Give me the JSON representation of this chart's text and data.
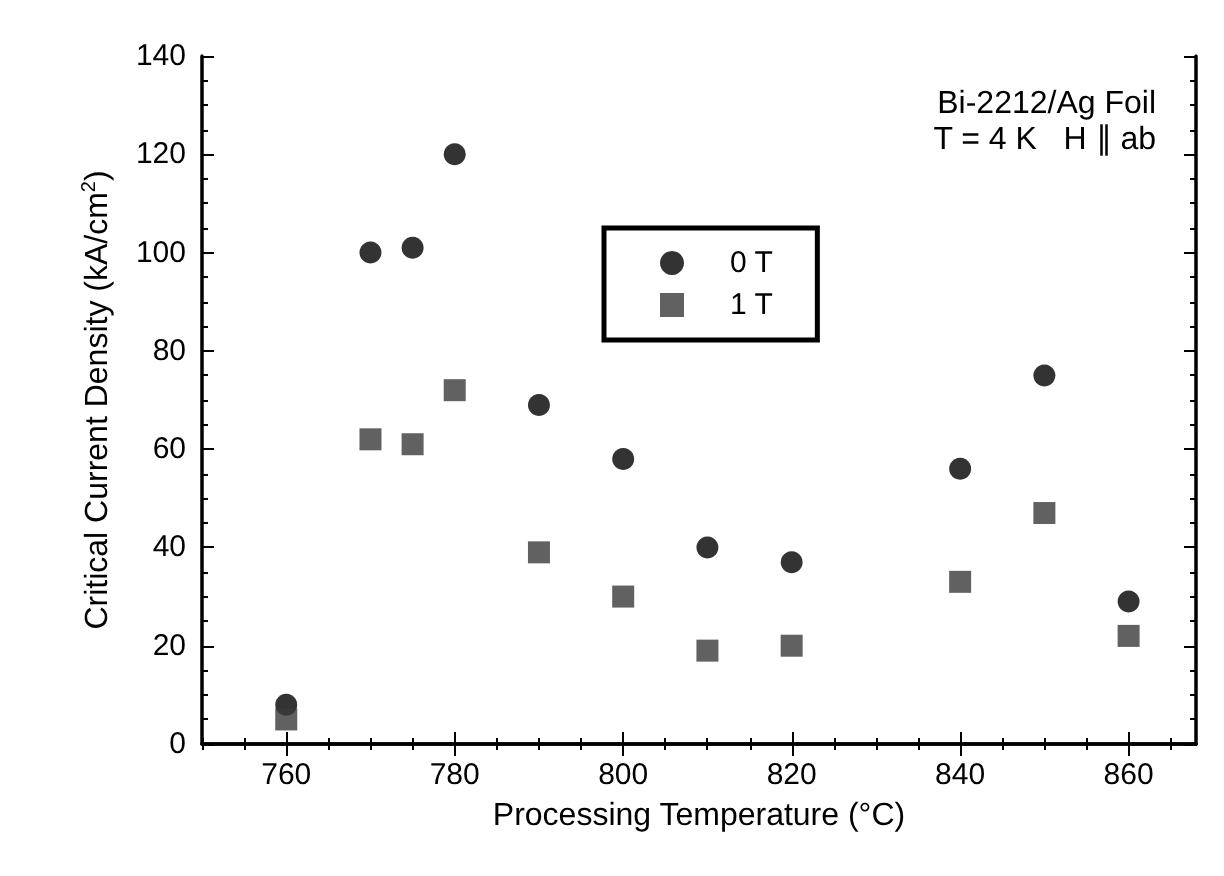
{
  "chart_data": {
    "type": "scatter",
    "xlabel": "Processing Temperature (°C)",
    "ylabel": "Critical Current Density (kA/cm$^{2}$)",
    "x": [
      760,
      770,
      775,
      780,
      790,
      800,
      810,
      820,
      840,
      850,
      860
    ],
    "series": [
      {
        "name": "0 T",
        "color": "#000000",
        "marker": "circle",
        "values": [
          8,
          100,
          101,
          120,
          69,
          58,
          40,
          37,
          56,
          75,
          29
        ]
      },
      {
        "name": "1 T",
        "color": "#3a3a3a",
        "marker": "square",
        "values": [
          5,
          62,
          61,
          72,
          39,
          30,
          19,
          20,
          33,
          47,
          22
        ]
      }
    ],
    "xlim": [
      750,
      868
    ],
    "xticks": [
      760,
      780,
      800,
      820,
      840,
      860
    ],
    "ylim": [
      0,
      140
    ],
    "yticks": [
      0,
      20,
      40,
      60,
      80,
      100,
      120,
      140
    ],
    "grid": false,
    "legend": "top",
    "annotations": [
      "Bi-2212/Ag Foil",
      "T = 4 K   H ∥ ab"
    ]
  }
}
